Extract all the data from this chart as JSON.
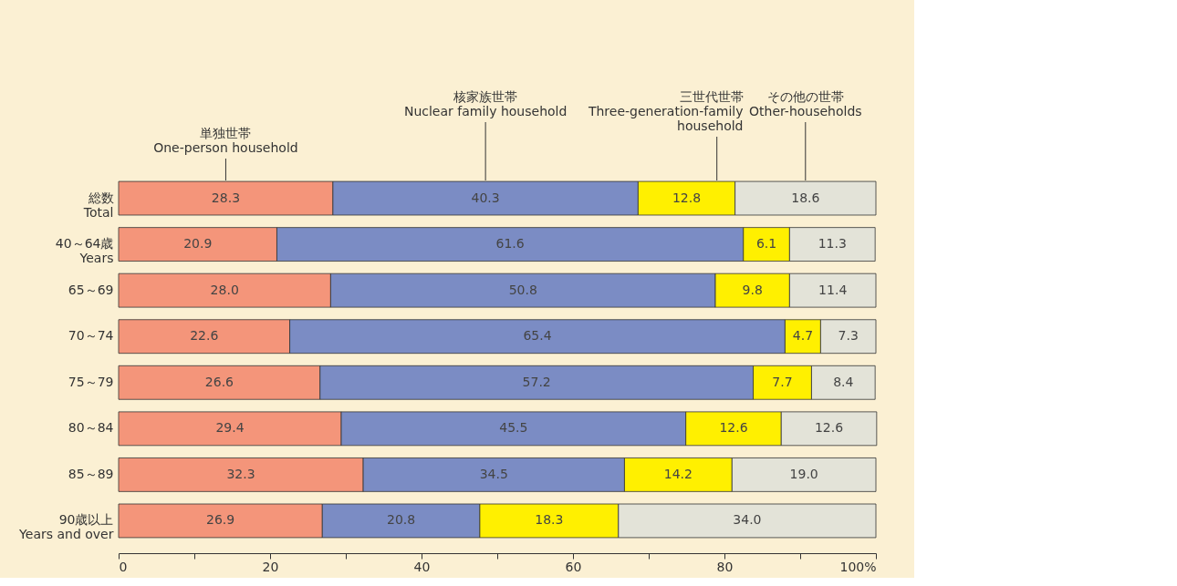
{
  "chart_data": {
    "type": "bar",
    "orientation": "horizontal",
    "stacked": true,
    "categories": [
      "総数\nTotal",
      "40～64歳\nYears",
      "65～69",
      "70～74",
      "75～79",
      "80～84",
      "85～89",
      "90歳以上\nYears and over"
    ],
    "series": [
      {
        "name": "単独世帯\nOne-person household",
        "color": "#f4957a",
        "values": [
          28.3,
          20.9,
          28.0,
          22.6,
          26.6,
          29.4,
          32.3,
          26.9
        ],
        "value_labels": [
          "28.3",
          "20.9",
          "28.0",
          "22.6",
          "26.6",
          "29.4",
          "32.3",
          "26.9"
        ]
      },
      {
        "name": "核家族世帯\nNuclear family household",
        "color": "#7b8cc4",
        "values": [
          40.3,
          61.6,
          50.8,
          65.4,
          57.2,
          45.5,
          34.5,
          20.8
        ],
        "value_labels": [
          "40.3",
          "61.6",
          "50.8",
          "65.4",
          "57.2",
          "45.5",
          "34.5",
          "20.8"
        ]
      },
      {
        "name": "三世代世帯\nThree-generation-family\nhousehold",
        "color": "#fff000",
        "values": [
          12.8,
          6.1,
          9.8,
          4.7,
          7.7,
          12.6,
          14.2,
          18.3
        ],
        "value_labels": [
          "12.8",
          "6.1",
          "9.8",
          "4.7",
          "7.7",
          "12.6",
          "14.2",
          "18.3"
        ]
      },
      {
        "name": "その他の世帯\nOther-households",
        "color": "#e3e3d8",
        "values": [
          18.6,
          11.3,
          11.4,
          7.3,
          8.4,
          12.6,
          19.0,
          34.0
        ],
        "value_labels": [
          "18.6",
          "11.3",
          "11.4",
          "7.3",
          "8.4",
          "12.6",
          "19.0",
          "34.0"
        ]
      }
    ],
    "xlim": [
      0,
      100
    ],
    "xticks": [
      0,
      {
        "value": 10,
        "label": null
      },
      20,
      {
        "value": 30,
        "label": null
      },
      40,
      {
        "value": 50,
        "label": null
      },
      60,
      {
        "value": 70,
        "label": null
      },
      80,
      {
        "value": 90,
        "label": null
      },
      {
        "value": 100,
        "label": "100%"
      }
    ],
    "grid": false,
    "legend": "top"
  }
}
